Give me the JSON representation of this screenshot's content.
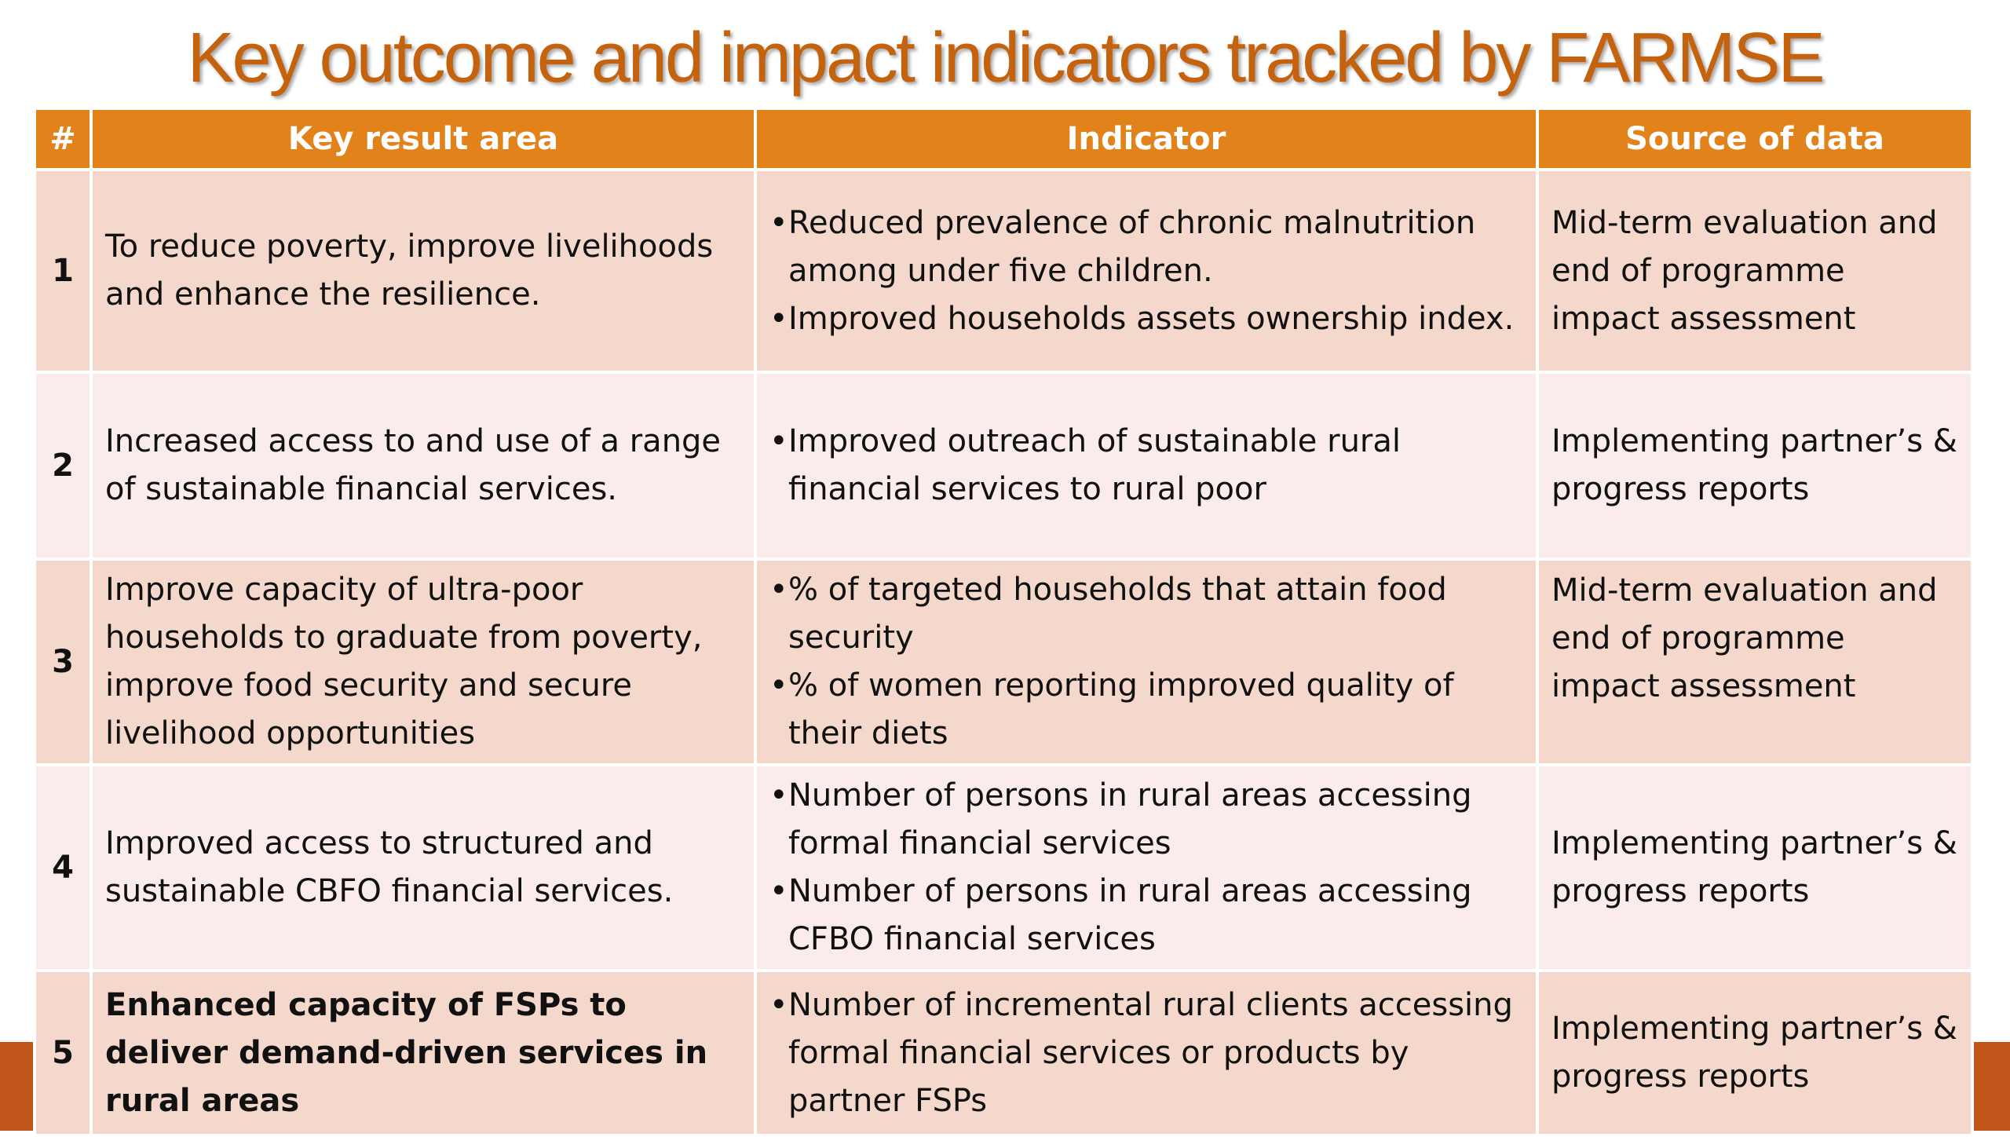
{
  "title": "Key outcome and impact indicators tracked by FARMSE",
  "headers": {
    "num": "#",
    "area": "Key result area",
    "indicator": "Indicator",
    "source": "Source of data"
  },
  "rows": [
    {
      "num": "1",
      "area": "To reduce poverty, improve livelihoods and enhance the resilience.",
      "indicators": [
        "Reduced prevalence of chronic malnutrition among under five children.",
        "Improved households assets ownership index."
      ],
      "source": "Mid-term evaluation and end of programme impact assessment"
    },
    {
      "num": "2",
      "area": "Increased access to and use of a range of sustainable financial services.",
      "indicators": [
        "Improved outreach of sustainable rural financial services to rural poor"
      ],
      "source": "Implementing partner’s & progress reports"
    },
    {
      "num": "3",
      "area": "Improve capacity of ultra-poor households to graduate from poverty, improve food security and secure livelihood opportunities",
      "indicators": [
        "% of targeted households that attain food security",
        "% of women reporting improved quality of their diets"
      ],
      "source": "Mid-term evaluation and end of programme impact assessment"
    },
    {
      "num": "4",
      "area": "Improved access to structured and sustainable CBFO financial services.",
      "indicators": [
        "Number of persons in rural areas accessing formal financial services",
        "Number of persons in rural areas accessing CFBO financial services"
      ],
      "source": "Implementing partner’s & progress reports"
    },
    {
      "num": "5",
      "area": "Enhanced capacity of FSPs to deliver demand-driven services in rural areas",
      "indicators": [
        "Number of incremental rural clients accessing formal financial services or products by partner FSPs"
      ],
      "source": "Implementing partner’s & progress reports"
    }
  ],
  "colors": {
    "title": "#c4620e",
    "header_bg": "#e2821b",
    "row_dark": "#f4d8cc",
    "row_light": "#f9ecea",
    "accent_bar": "#c0561a"
  }
}
